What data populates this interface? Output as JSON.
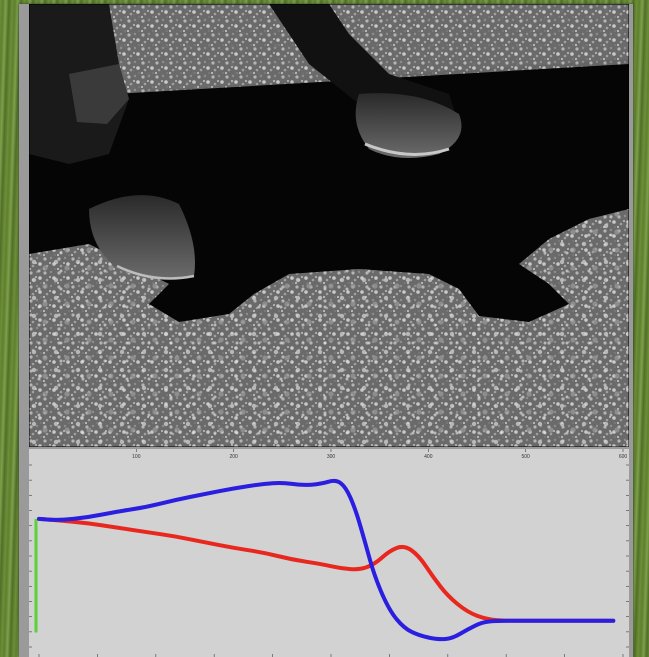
{
  "photo": {
    "subject": "hooves-on-gravel-photo"
  },
  "chart_data": {
    "type": "line",
    "title": "",
    "xlabel": "",
    "ylabel": "",
    "xlim": [
      0,
      600
    ],
    "ylim": [
      0,
      1
    ],
    "x_ticks": [
      "100",
      "200",
      "300",
      "400",
      "500",
      "600"
    ],
    "grid": false,
    "legend": "none",
    "series": [
      {
        "color": "#e8281e",
        "x": [
          0,
          20,
          50,
          80,
          110,
          140,
          170,
          200,
          230,
          260,
          290,
          310,
          330,
          345,
          360,
          375,
          390,
          405,
          420,
          440,
          460,
          480,
          500,
          530,
          560,
          590
        ],
        "y": [
          0.78,
          0.77,
          0.75,
          0.72,
          0.69,
          0.66,
          0.62,
          0.58,
          0.55,
          0.5,
          0.47,
          0.44,
          0.43,
          0.47,
          0.56,
          0.6,
          0.53,
          0.38,
          0.25,
          0.14,
          0.09,
          0.08,
          0.08,
          0.08,
          0.08,
          0.08
        ]
      },
      {
        "color": "#2a1ee0",
        "x": [
          0,
          20,
          50,
          80,
          110,
          140,
          170,
          200,
          230,
          250,
          270,
          290,
          305,
          315,
          325,
          335,
          345,
          360,
          375,
          390,
          410,
          425,
          440,
          455,
          470,
          500,
          530,
          560,
          590
        ],
        "y": [
          0.78,
          0.77,
          0.79,
          0.83,
          0.86,
          0.91,
          0.95,
          0.99,
          1.02,
          1.03,
          1.01,
          1.02,
          1.05,
          1.0,
          0.85,
          0.62,
          0.38,
          0.15,
          0.03,
          -0.02,
          -0.05,
          -0.04,
          0.02,
          0.07,
          0.08,
          0.08,
          0.08,
          0.08,
          0.08
        ]
      }
    ],
    "marker": {
      "color": "#5ad23a",
      "y_range": [
        0.0,
        0.78
      ]
    }
  }
}
